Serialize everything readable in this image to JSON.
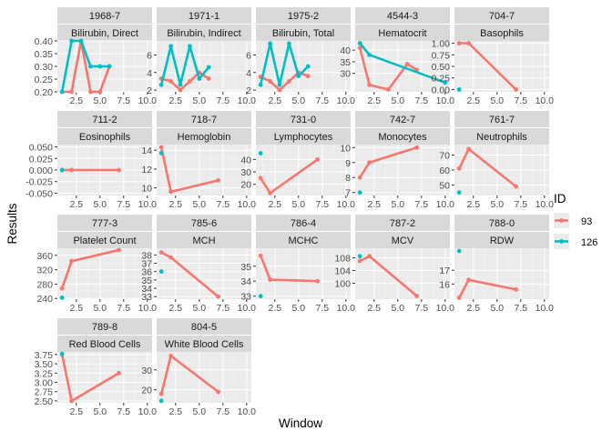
{
  "chart_data": {
    "type": "line",
    "xlabel": "Window",
    "ylabel": "Results",
    "legend": {
      "title": "ID",
      "position": "right",
      "entries": [
        {
          "name": "93",
          "color": "#F8766D"
        },
        {
          "name": "126",
          "color": "#00BFC4"
        }
      ]
    },
    "grid": true,
    "facet_layout": {
      "columns": 5,
      "rows": 4
    },
    "x_ticks": [
      "2.5",
      "5.0",
      "7.5",
      "10.0"
    ],
    "x_tick_values": [
      2.5,
      5.0,
      7.5,
      10.0
    ],
    "xlim": [
      0.5,
      10.5
    ],
    "panels": [
      {
        "code": "1968-7",
        "name": "Bilirubin, Direct",
        "ylim": [
          0.2,
          0.4
        ],
        "y_ticks": [
          "0.20",
          "0.25",
          "0.30",
          "0.35",
          "0.40"
        ],
        "y_tick_values": [
          0.2,
          0.25,
          0.3,
          0.35,
          0.4
        ],
        "series": [
          {
            "name": "93",
            "points": [
              [
                1,
                0.2
              ],
              [
                2,
                0.2
              ],
              [
                3,
                0.4
              ],
              [
                4,
                0.2
              ],
              [
                5,
                0.2
              ],
              [
                6,
                0.3
              ]
            ]
          },
          {
            "name": "126",
            "points": [
              [
                1,
                0.2
              ],
              [
                2,
                0.4
              ],
              [
                3,
                0.4
              ],
              [
                4,
                0.3
              ],
              [
                5,
                0.3
              ],
              [
                6,
                0.3
              ]
            ]
          }
        ]
      },
      {
        "code": "1971-1",
        "name": "Bilirubin, Indirect",
        "ylim": [
          1.8,
          7.6
        ],
        "y_ticks": [
          "2",
          "4",
          "6"
        ],
        "y_tick_values": [
          2,
          4,
          6
        ],
        "series": [
          {
            "name": "93",
            "points": [
              [
                1,
                3.3
              ],
              [
                2,
                3.0
              ],
              [
                3,
                2.0
              ],
              [
                4,
                3.0
              ],
              [
                5,
                4.0
              ],
              [
                6,
                3.3
              ]
            ]
          },
          {
            "name": "126",
            "points": [
              [
                1,
                2.6
              ],
              [
                2,
                7.0
              ],
              [
                3,
                2.6
              ],
              [
                4,
                7.0
              ],
              [
                5,
                3.3
              ],
              [
                6,
                4.6
              ]
            ]
          }
        ]
      },
      {
        "code": "1975-2",
        "name": "Bilirubin, Total",
        "ylim": [
          1.8,
          7.6
        ],
        "y_ticks": [
          "2",
          "4",
          "6"
        ],
        "y_tick_values": [
          2,
          4,
          6
        ],
        "series": [
          {
            "name": "93",
            "points": [
              [
                1,
                3.5
              ],
              [
                2,
                3.0
              ],
              [
                3,
                2.0
              ],
              [
                4,
                3.0
              ],
              [
                5,
                4.0
              ],
              [
                6,
                3.6
              ]
            ]
          },
          {
            "name": "126",
            "points": [
              [
                1,
                2.6
              ],
              [
                2,
                7.3
              ],
              [
                3,
                2.6
              ],
              [
                4,
                7.3
              ],
              [
                5,
                3.6
              ],
              [
                6,
                4.7
              ]
            ]
          }
        ]
      },
      {
        "code": "4544-3",
        "name": "Hematocrit",
        "ylim": [
          22,
          44
        ],
        "y_ticks": [
          "30",
          "35",
          "40"
        ],
        "y_tick_values": [
          30,
          35,
          40
        ],
        "series": [
          {
            "name": "93",
            "points": [
              [
                1,
                41
              ],
              [
                2,
                25
              ],
              [
                4,
                23
              ],
              [
                6,
                34
              ],
              [
                7,
                31.5
              ]
            ]
          },
          {
            "name": "126",
            "points": [
              [
                1,
                43
              ],
              [
                2,
                38
              ],
              [
                10,
                26
              ]
            ]
          }
        ]
      },
      {
        "code": "704-7",
        "name": "Basophils",
        "ylim": [
          -0.05,
          1.05
        ],
        "y_ticks": [
          "0.00",
          "0.25",
          "0.50",
          "0.75",
          "1.00"
        ],
        "y_tick_values": [
          0,
          0.25,
          0.5,
          0.75,
          1.0
        ],
        "series": [
          {
            "name": "93",
            "points": [
              [
                1,
                1.0
              ],
              [
                2,
                1.0
              ],
              [
                7,
                0.0
              ]
            ]
          },
          {
            "name": "126",
            "points": [
              [
                1,
                0.0
              ]
            ]
          }
        ]
      },
      {
        "code": "711-2",
        "name": "Eosinophils",
        "ylim": [
          -0.055,
          0.055
        ],
        "y_ticks": [
          "-0.050",
          "-0.025",
          "0.000",
          "0.025",
          "0.050"
        ],
        "y_tick_values": [
          -0.05,
          -0.025,
          0,
          0.025,
          0.05
        ],
        "series": [
          {
            "name": "93",
            "points": [
              [
                1,
                0.0
              ],
              [
                2,
                0.0
              ],
              [
                7,
                0.0
              ]
            ]
          },
          {
            "name": "126",
            "points": [
              [
                1,
                0.0
              ]
            ]
          }
        ]
      },
      {
        "code": "718-7",
        "name": "Hemoglobin",
        "ylim": [
          9.2,
          14.6
        ],
        "y_ticks": [
          "10",
          "12",
          "14"
        ],
        "y_tick_values": [
          10,
          12,
          14
        ],
        "series": [
          {
            "name": "93",
            "points": [
              [
                1,
                14.3
              ],
              [
                2,
                9.6
              ],
              [
                7,
                10.8
              ]
            ]
          },
          {
            "name": "126",
            "points": [
              [
                1,
                13.7
              ]
            ]
          }
        ]
      },
      {
        "code": "731-0",
        "name": "Lymphocytes",
        "ylim": [
          11,
          52
        ],
        "y_ticks": [
          "20",
          "30",
          "40"
        ],
        "y_tick_values": [
          20,
          30,
          40
        ],
        "series": [
          {
            "name": "93",
            "points": [
              [
                1,
                25
              ],
              [
                2,
                13
              ],
              [
                7,
                40
              ]
            ]
          },
          {
            "name": "126",
            "points": [
              [
                1,
                45
              ]
            ]
          }
        ]
      },
      {
        "code": "742-7",
        "name": "Monocytes",
        "ylim": [
          6.8,
          10.2
        ],
        "y_ticks": [
          "7",
          "8",
          "9",
          "10"
        ],
        "y_tick_values": [
          7,
          8,
          9,
          10
        ],
        "series": [
          {
            "name": "93",
            "points": [
              [
                1,
                8
              ],
              [
                2,
                9
              ],
              [
                7,
                10
              ]
            ]
          },
          {
            "name": "126",
            "points": [
              [
                1,
                7
              ]
            ]
          }
        ]
      },
      {
        "code": "761-7",
        "name": "Neutrophils",
        "ylim": [
          43,
          77
        ],
        "y_ticks": [
          "50",
          "60",
          "70"
        ],
        "y_tick_values": [
          50,
          60,
          70
        ],
        "series": [
          {
            "name": "93",
            "points": [
              [
                1,
                61
              ],
              [
                2,
                74
              ],
              [
                7,
                49
              ]
            ]
          },
          {
            "name": "126",
            "points": [
              [
                1,
                45
              ]
            ]
          }
        ]
      },
      {
        "code": "777-3",
        "name": "Platelet Count",
        "ylim": [
          238,
          380
        ],
        "y_ticks": [
          "240",
          "280",
          "320",
          "360"
        ],
        "y_tick_values": [
          240,
          280,
          320,
          360
        ],
        "series": [
          {
            "name": "93",
            "points": [
              [
                1,
                268
              ],
              [
                2,
                344
              ],
              [
                7,
                375
              ]
            ]
          },
          {
            "name": "126",
            "points": [
              [
                1,
                242
              ]
            ]
          }
        ]
      },
      {
        "code": "785-6",
        "name": "MCH",
        "ylim": [
          32.7,
          38.8
        ],
        "y_ticks": [
          "33",
          "34",
          "35",
          "36",
          "37",
          "38"
        ],
        "y_tick_values": [
          33,
          34,
          35,
          36,
          37,
          38
        ],
        "series": [
          {
            "name": "93",
            "points": [
              [
                1,
                38.3
              ],
              [
                2,
                37.7
              ],
              [
                7,
                33
              ]
            ]
          },
          {
            "name": "126",
            "points": [
              [
                1,
                36
              ]
            ]
          }
        ]
      },
      {
        "code": "786-4",
        "name": "MCHC",
        "ylim": [
          32.8,
          36.2
        ],
        "y_ticks": [
          "33",
          "34",
          "35"
        ],
        "y_tick_values": [
          33,
          34,
          35
        ],
        "series": [
          {
            "name": "93",
            "points": [
              [
                1,
                35.7
              ],
              [
                2,
                34.1
              ],
              [
                7,
                34
              ]
            ]
          },
          {
            "name": "126",
            "points": [
              [
                1,
                33
              ]
            ]
          }
        ]
      },
      {
        "code": "787-2",
        "name": "MCV",
        "ylim": [
          95,
          111
        ],
        "y_ticks": [
          "100",
          "104",
          "108"
        ],
        "y_tick_values": [
          100,
          104,
          108
        ],
        "series": [
          {
            "name": "93",
            "points": [
              [
                1,
                107
              ],
              [
                2,
                108.5
              ],
              [
                7,
                96
              ]
            ]
          },
          {
            "name": "126",
            "points": [
              [
                1,
                108.5
              ]
            ]
          }
        ]
      },
      {
        "code": "788-0",
        "name": "RDW",
        "ylim": [
          14.9,
          18.6
        ],
        "y_ticks": [
          "16",
          "17"
        ],
        "y_tick_values": [
          16,
          17
        ],
        "series": [
          {
            "name": "93",
            "points": [
              [
                1,
                15.0
              ],
              [
                2,
                16.3
              ],
              [
                7,
                15.6
              ]
            ]
          },
          {
            "name": "126",
            "points": [
              [
                1,
                18.4
              ]
            ]
          }
        ]
      },
      {
        "code": "789-8",
        "name": "Red Blood Cells",
        "ylim": [
          2.45,
          3.82
        ],
        "y_ticks": [
          "2.50",
          "2.75",
          "3.00",
          "3.25",
          "3.50",
          "3.75"
        ],
        "y_tick_values": [
          2.5,
          2.75,
          3.0,
          3.25,
          3.5,
          3.75
        ],
        "series": [
          {
            "name": "93",
            "points": [
              [
                1,
                3.75
              ],
              [
                2,
                2.5
              ],
              [
                7,
                3.25
              ]
            ]
          },
          {
            "name": "126",
            "points": [
              [
                1,
                3.77
              ]
            ]
          }
        ]
      },
      {
        "code": "804-5",
        "name": "White Blood Cells",
        "ylim": [
          13.5,
          39
        ],
        "y_ticks": [
          "20",
          "30"
        ],
        "y_tick_values": [
          20,
          30
        ],
        "series": [
          {
            "name": "93",
            "points": [
              [
                1,
                18
              ],
              [
                2,
                37
              ],
              [
                7,
                19
              ]
            ]
          },
          {
            "name": "126",
            "points": [
              [
                1,
                14.5
              ]
            ]
          }
        ]
      }
    ]
  }
}
